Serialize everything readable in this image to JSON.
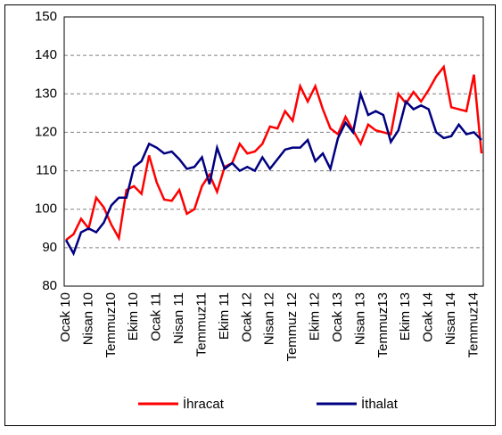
{
  "chart_data": {
    "type": "line",
    "categories": [
      "Ocak 10",
      null,
      null,
      "Nisan 10",
      null,
      null,
      "Temmuz10",
      null,
      null,
      "Ekim 10",
      null,
      null,
      "Ocak 11",
      null,
      null,
      "Nisan 11",
      null,
      null,
      "Temmuz11",
      null,
      null,
      "Ekim 11",
      null,
      null,
      "Ocak 12",
      null,
      null,
      "Nisan 12",
      null,
      null,
      "Temmuz 12",
      null,
      null,
      "Ekim 12",
      null,
      null,
      "Ocak 13",
      null,
      null,
      "Nisan 13",
      null,
      null,
      "Temmuz13",
      null,
      null,
      "Ekim 13",
      null,
      null,
      "Ocak 14",
      null,
      null,
      "Nisan 14",
      null,
      null,
      "Temmuz14",
      null
    ],
    "series": [
      {
        "name": "İhracat",
        "color": "#ff0000",
        "values": [
          92,
          93.5,
          97.5,
          95,
          103,
          100.5,
          96,
          92.5,
          105,
          106,
          104,
          114,
          107,
          102.5,
          102.2,
          105,
          98.8,
          100,
          106,
          109,
          104.5,
          111,
          112,
          117,
          114.5,
          115,
          117,
          121.5,
          121,
          125.5,
          123,
          132,
          128,
          132,
          126,
          121,
          119.5,
          124,
          120.5,
          117,
          122,
          120.5,
          120,
          119.5,
          130,
          127.5,
          130.5,
          128,
          131,
          134.5,
          137,
          126.5,
          126,
          125.5,
          135,
          114.5
        ]
      },
      {
        "name": "İthalat",
        "color": "#000080",
        "values": [
          92,
          88.5,
          94,
          95,
          94,
          96.5,
          101,
          103,
          103,
          111,
          112.5,
          117,
          116,
          114.5,
          115,
          113,
          110.5,
          111,
          113.5,
          106.5,
          116,
          110.5,
          112,
          110,
          111,
          110,
          113.5,
          110.5,
          113,
          115.5,
          116,
          116,
          118,
          112.5,
          114.5,
          110.5,
          118.5,
          122.5,
          120,
          130,
          124.5,
          125.5,
          124.5,
          117.5,
          120.5,
          128,
          126,
          127,
          126,
          120,
          118.5,
          119,
          122,
          119.5,
          120,
          118
        ]
      }
    ],
    "ylim": [
      80,
      150
    ],
    "yticks": [
      80,
      90,
      100,
      110,
      120,
      130,
      140,
      150
    ],
    "grid": true
  }
}
